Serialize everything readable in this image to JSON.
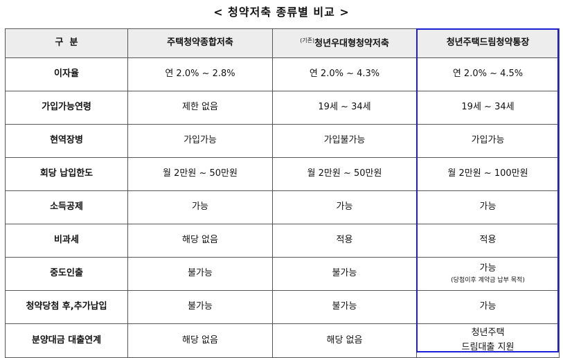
{
  "title": "< 청약저축 종류별 비교 >",
  "header": {
    "col0": "구  분",
    "col1": "주택청약종합저축",
    "col2_prefix": "(기존)",
    "col2": "청년우대형청약저축",
    "col3": "청년주택드림청약통장"
  },
  "rows": [
    {
      "label": "이자율",
      "c1": "연 2.0% ~ 2.8%",
      "c2": "연 2.0% ~ 4.3%",
      "c3": "연 2.0% ~ 4.5%"
    },
    {
      "label": "가입가능연령",
      "c1": "제한 없음",
      "c2": "19세 ~ 34세",
      "c3": "19세 ~ 34세"
    },
    {
      "label": "현역장병",
      "c1": "가입가능",
      "c2": "가입불가능",
      "c3": "가입가능"
    },
    {
      "label": "회당 납입한도",
      "c1": "월 2만원 ~ 50만원",
      "c2": "월 2만원 ~ 50만원",
      "c3": "월 2만원 ~ 100만원"
    },
    {
      "label": "소득공제",
      "c1": "가능",
      "c2": "가능",
      "c3": "가능"
    },
    {
      "label": "비과세",
      "c1": "해당 없음",
      "c2": "적용",
      "c3": "적용"
    },
    {
      "label": "중도인출",
      "c1": "불가능",
      "c2": "불가능",
      "c3": "가능",
      "c3_note": "(당첨이후 계약금 납부 목적)"
    },
    {
      "label": "청약당첨 후,추가납입",
      "c1": "불가능",
      "c2": "불가능",
      "c3": "가능"
    },
    {
      "label": "분양대금 대출연계",
      "c1": "해당 없음",
      "c2": "해당 없음",
      "c3": "청년주택",
      "c3_line2": "드림대출 지원"
    }
  ],
  "highlight_color": "#1d1dd8"
}
